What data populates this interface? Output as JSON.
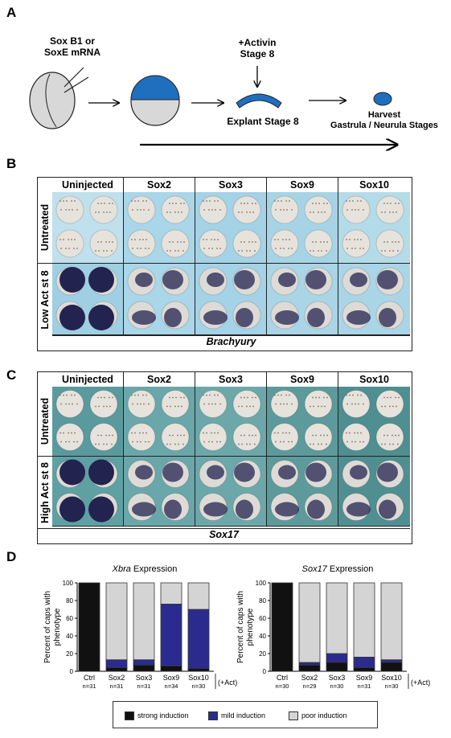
{
  "panel_labels": {
    "a": "A",
    "b": "B",
    "c": "C",
    "d": "D"
  },
  "schematic": {
    "mrna_label_1": "Sox B1 or",
    "mrna_label_2": "SoxE mRNA",
    "activin_1": "+Activin",
    "activin_2": "Stage 8",
    "explant": "Explant Stage 8",
    "harvest_1": "Harvest",
    "harvest_2": "Gastrula / Neurula Stages",
    "colors": {
      "animal_cap": "#1f6fbf",
      "embryo": "#d8d8d8"
    }
  },
  "panel_b": {
    "columns": [
      "Uninjected",
      "Sox2",
      "Sox3",
      "Sox9",
      "Sox10"
    ],
    "rows": [
      "Untreated",
      "Low Act st 8"
    ],
    "caption": "Brachyury"
  },
  "panel_c": {
    "columns": [
      "Uninjected",
      "Sox2",
      "Sox3",
      "Sox9",
      "Sox10"
    ],
    "rows": [
      "Untreated",
      "High Act st 8"
    ],
    "caption": "Sox17"
  },
  "panel_d": {
    "ylabel_1": "Percent of caps with",
    "ylabel_2": "phenotype",
    "act_label": "(+Act)",
    "legend": [
      "strong induction",
      "mild induction",
      "poor induction"
    ],
    "colors": {
      "strong": "#111111",
      "mild": "#2b2b8f",
      "poor": "#d4d4d4"
    }
  },
  "chart_data": [
    {
      "type": "bar",
      "title_italic": "Xbra",
      "title_rest": " Expression",
      "categories": [
        "Ctrl",
        "Sox2",
        "Sox3",
        "Sox9",
        "Sox10"
      ],
      "n": [
        "n=31",
        "n=31",
        "n=31",
        "n=34",
        "n=30"
      ],
      "yticks": [
        "0",
        "20",
        "40",
        "60",
        "80",
        "100"
      ],
      "ylim": [
        0,
        100
      ],
      "series": [
        {
          "name": "strong induction",
          "values": [
            100,
            4,
            7,
            6,
            3
          ]
        },
        {
          "name": "mild induction",
          "values": [
            0,
            9,
            6,
            70,
            67
          ]
        },
        {
          "name": "poor induction",
          "values": [
            0,
            87,
            87,
            24,
            30
          ]
        }
      ]
    },
    {
      "type": "bar",
      "title_italic": "Sox17",
      "title_rest": " Expression",
      "categories": [
        "Ctrl",
        "Sox2",
        "Sox3",
        "Sox9",
        "Sox10"
      ],
      "n": [
        "n=30",
        "n=29",
        "n=30",
        "n=31",
        "n=30"
      ],
      "yticks": [
        "0",
        "20",
        "40",
        "60",
        "80",
        "100"
      ],
      "ylim": [
        0,
        100
      ],
      "series": [
        {
          "name": "strong induction",
          "values": [
            100,
            7,
            10,
            4,
            10
          ]
        },
        {
          "name": "mild induction",
          "values": [
            0,
            3,
            10,
            12,
            3
          ]
        },
        {
          "name": "poor induction",
          "values": [
            0,
            90,
            80,
            84,
            87
          ]
        }
      ]
    }
  ]
}
